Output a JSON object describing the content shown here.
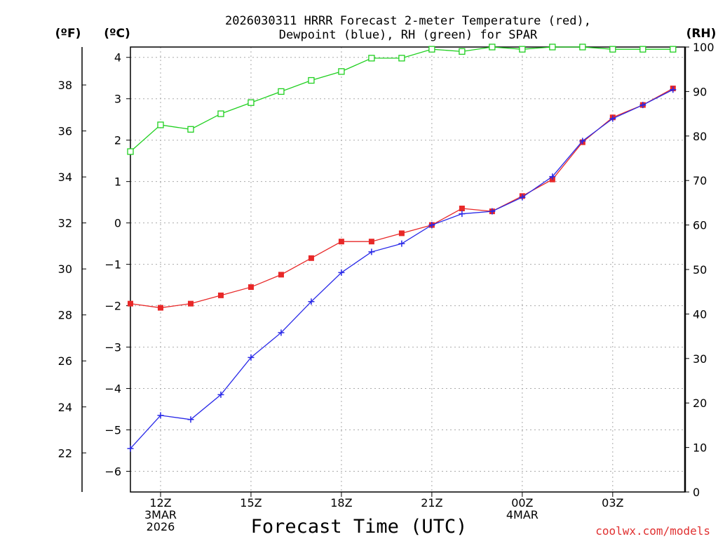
{
  "chart_data": {
    "type": "line",
    "title_lines": [
      "2026030311 HRRR Forecast 2-meter Temperature (red),",
      "Dewpoint (blue), RH (green) for SPAR"
    ],
    "xlabel": "Forecast Time (UTC)",
    "credit": "coolwx.com/models",
    "axes": {
      "left_f": {
        "unit_label": "(ºF)",
        "ticks": [
          22,
          24,
          26,
          28,
          30,
          32,
          34,
          36,
          38
        ]
      },
      "left_c": {
        "unit_label": "(ºC)",
        "ticks": [
          -6,
          -5,
          -4,
          -3,
          -2,
          -1,
          0,
          1,
          2,
          3,
          4
        ],
        "ylim": [
          -6.5,
          4.25
        ]
      },
      "right_rh": {
        "unit_label": "(RH)",
        "ticks": [
          0,
          10,
          20,
          30,
          40,
          50,
          60,
          70,
          80,
          90,
          100
        ],
        "ylim": [
          0,
          100
        ]
      }
    },
    "x_hours": [
      11,
      12,
      13,
      14,
      15,
      16,
      17,
      18,
      19,
      20,
      21,
      22,
      23,
      24,
      25,
      26,
      27,
      28,
      29
    ],
    "xlim": [
      11,
      29.4
    ],
    "x_ticks": [
      {
        "hour": 12,
        "lines": [
          "12Z",
          "3MAR",
          "2026"
        ]
      },
      {
        "hour": 15,
        "lines": [
          "15Z"
        ]
      },
      {
        "hour": 18,
        "lines": [
          "18Z"
        ]
      },
      {
        "hour": 21,
        "lines": [
          "21Z"
        ]
      },
      {
        "hour": 24,
        "lines": [
          "00Z",
          "4MAR"
        ]
      },
      {
        "hour": 27,
        "lines": [
          "03Z"
        ]
      }
    ],
    "series": [
      {
        "name": "Temperature",
        "unit": "C",
        "color": "#e82828",
        "marker": "filled-square",
        "values": [
          -1.95,
          -2.05,
          -1.95,
          -1.75,
          -1.55,
          -1.25,
          -0.85,
          -0.45,
          -0.45,
          -0.25,
          -0.05,
          0.35,
          0.28,
          0.65,
          1.05,
          1.95,
          2.55,
          2.85,
          3.25
        ]
      },
      {
        "name": "Dewpoint",
        "unit": "C",
        "color": "#2828e8",
        "marker": "plus",
        "values": [
          -5.45,
          -4.65,
          -4.75,
          -4.15,
          -3.25,
          -2.65,
          -1.9,
          -1.2,
          -0.7,
          -0.5,
          -0.05,
          0.22,
          0.28,
          0.62,
          1.12,
          1.98,
          2.52,
          2.85,
          3.22
        ]
      },
      {
        "name": "RH",
        "unit": "%",
        "color": "#20d020",
        "marker": "open-square",
        "values": [
          76.5,
          82.5,
          81.5,
          85,
          87.5,
          90,
          92.5,
          94.5,
          97.5,
          97.5,
          99.5,
          99,
          100,
          99.5,
          100,
          100,
          99.5,
          99.5,
          99.5
        ]
      }
    ]
  }
}
